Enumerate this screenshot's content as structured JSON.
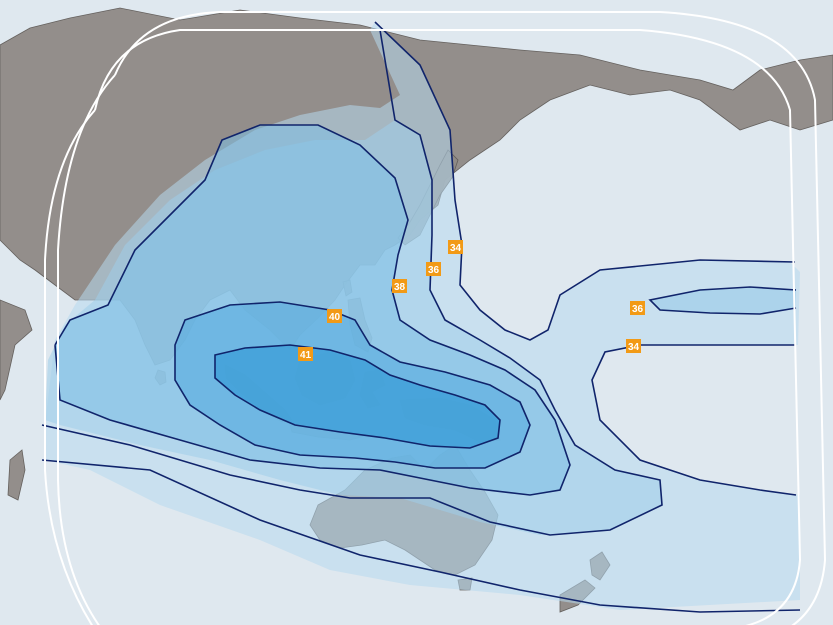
{
  "map": {
    "colors": {
      "ocean": "#dfe8ef",
      "land": "#8f8a86",
      "contour_line": "#10246b",
      "label_box": "#f29a16",
      "label_text": "#ffffff",
      "zone_34": "#b6d9ef",
      "zone_36": "#9fcde9",
      "zone_38": "#7dbfe5",
      "zone_40": "#56ace0",
      "zone_41": "#2f98d6",
      "coverage_outline": "#ffffff"
    },
    "contour_labels": [
      {
        "id": "34-japan",
        "text": "34"
      },
      {
        "id": "36-japan",
        "text": "36"
      },
      {
        "id": "38-japan",
        "text": "38"
      },
      {
        "id": "40-philippines",
        "text": "40"
      },
      {
        "id": "41-indonesia",
        "text": "41"
      },
      {
        "id": "36-pacific",
        "text": "36"
      },
      {
        "id": "34-pacific",
        "text": "34"
      }
    ]
  }
}
